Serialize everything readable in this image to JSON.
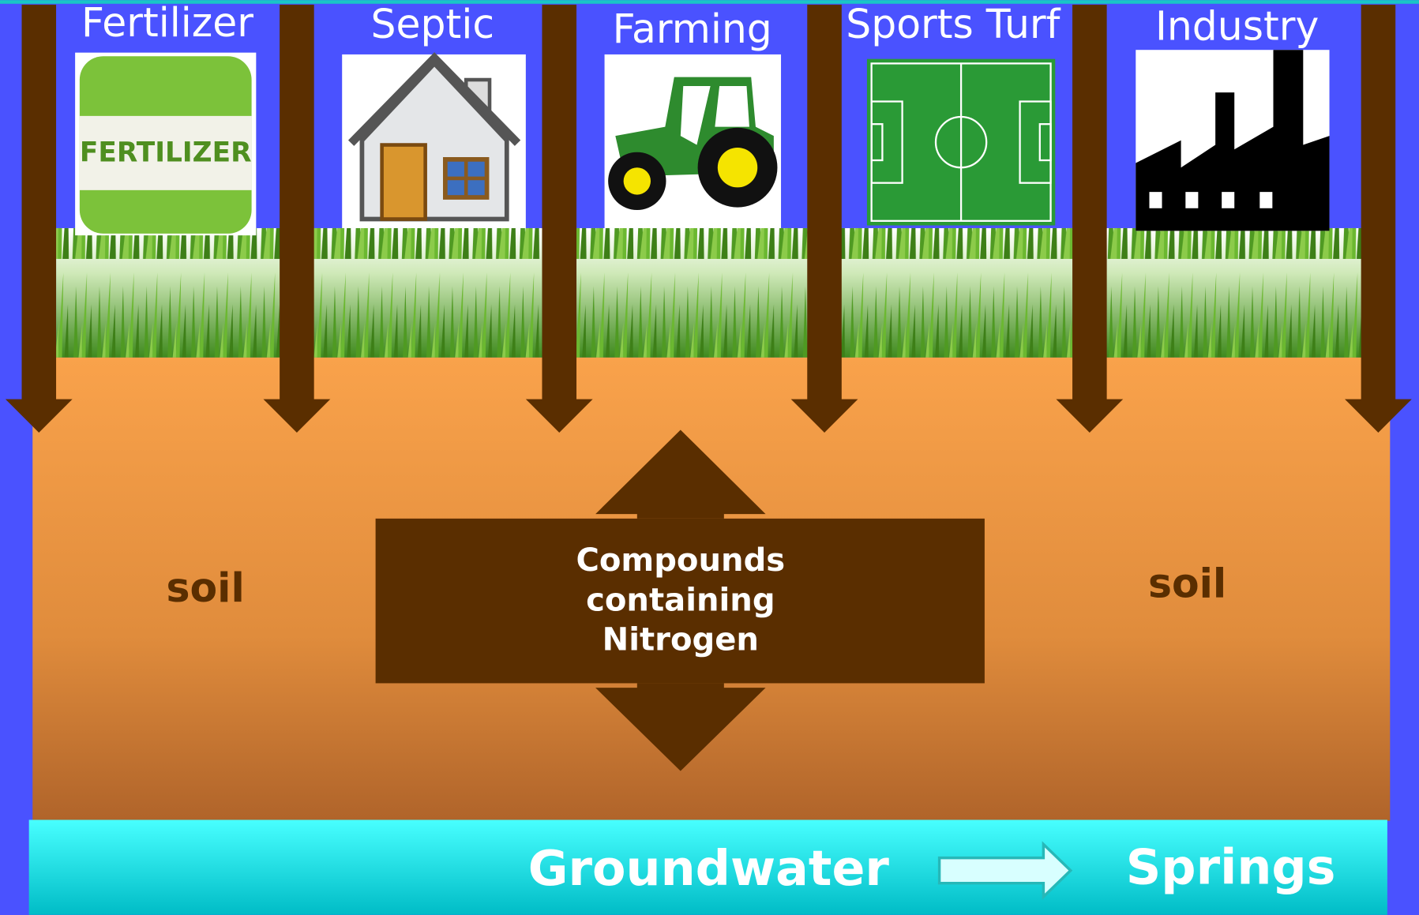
{
  "sources": [
    {
      "label": "Fertilizer",
      "icon_text": "FERTILIZER"
    },
    {
      "label": "Septic"
    },
    {
      "label": "Farming"
    },
    {
      "label": "Sports Turf"
    },
    {
      "label": "Industry"
    }
  ],
  "soil_left": "soil",
  "soil_right": "soil",
  "center": {
    "lines": [
      "Compounds",
      "containing",
      "Nitrogen"
    ]
  },
  "groundwater": "Groundwater",
  "springs": "Springs"
}
